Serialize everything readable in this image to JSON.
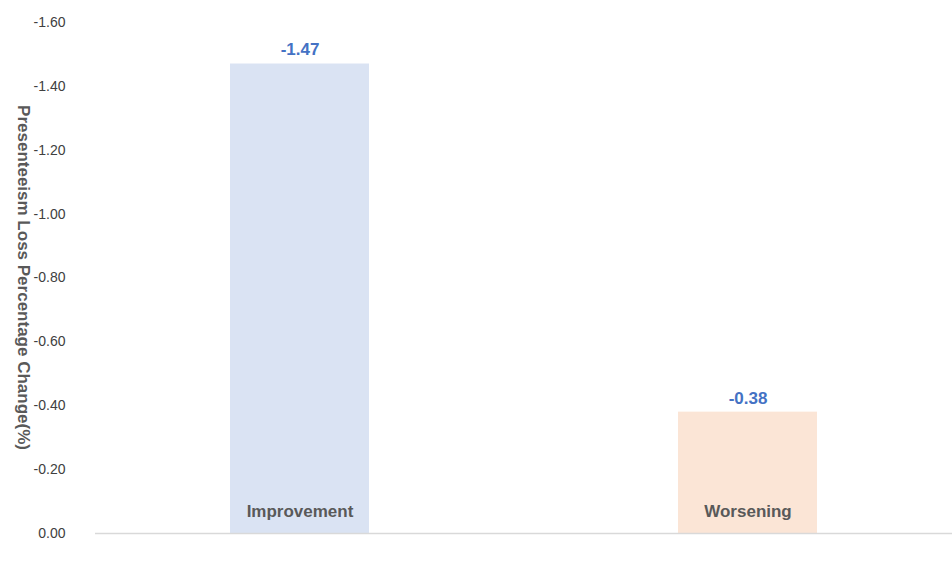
{
  "chart_data": {
    "type": "bar",
    "y_label": "Presenteeism Loss Percentage Change(%)",
    "categories": [
      "Improvement",
      "Worsening"
    ],
    "values": [
      -1.47,
      -0.38
    ],
    "colors": [
      "#dae3f3",
      "#fbe5d6"
    ],
    "ylim": [
      0,
      -1.6
    ],
    "yticks": [
      {
        "value": 0,
        "label": "0.00"
      },
      {
        "value": -0.2,
        "label": "-0.20"
      },
      {
        "value": -0.4,
        "label": "-0.40"
      },
      {
        "value": -0.6,
        "label": "-0.60"
      },
      {
        "value": -0.8,
        "label": "-0.80"
      },
      {
        "value": -1.0,
        "label": "-1.00"
      },
      {
        "value": -1.2,
        "label": "-1.20"
      },
      {
        "value": -1.4,
        "label": "-1.40"
      },
      {
        "value": -1.6,
        "label": "-1.60"
      }
    ],
    "data_labels": true,
    "grid": false
  }
}
